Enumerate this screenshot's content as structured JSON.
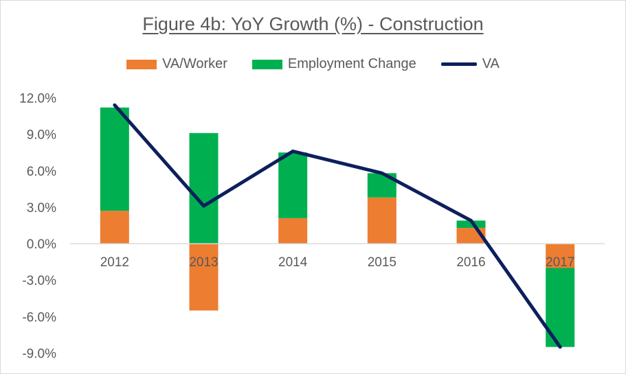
{
  "chart_data": {
    "type": "bar",
    "title": "Figure 4b: YoY Growth (%) - Construction",
    "categories": [
      "2012",
      "2013",
      "2014",
      "2015",
      "2016",
      "2017"
    ],
    "series": [
      {
        "name": "VA/Worker",
        "kind": "stacked-bar",
        "color": "#ED7D31",
        "values": [
          2.7,
          -5.5,
          2.1,
          3.8,
          1.3,
          -2.0
        ]
      },
      {
        "name": "Employment Change",
        "kind": "stacked-bar",
        "color": "#00B050",
        "values": [
          8.5,
          9.1,
          5.4,
          2.0,
          0.6,
          -6.5
        ]
      },
      {
        "name": "VA",
        "kind": "line",
        "color": "#0D1F5C",
        "values": [
          11.4,
          3.1,
          7.6,
          5.8,
          1.9,
          -8.5
        ]
      }
    ],
    "y_ticks": [
      "12.0%",
      "9.0%",
      "6.0%",
      "3.0%",
      "0.0%",
      "-3.0%",
      "-6.0%",
      "-9.0%"
    ],
    "ylim": [
      -9,
      12
    ],
    "grid": false,
    "legend": "top"
  }
}
